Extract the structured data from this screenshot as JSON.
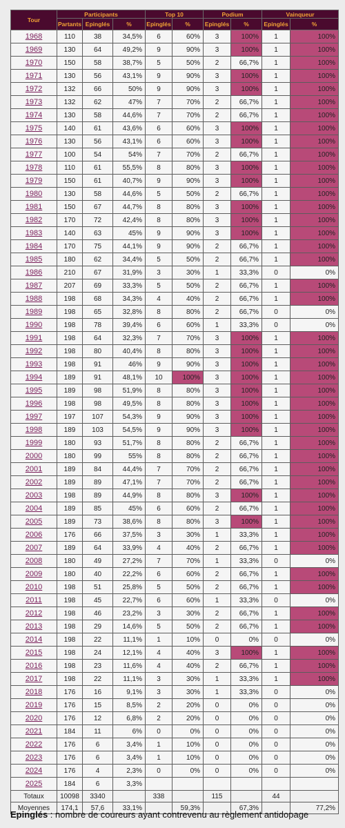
{
  "header": {
    "tour": "Tour",
    "groups": [
      "Participants",
      "Top 10",
      "Podium",
      "Vainqueur"
    ],
    "subcols": [
      "Partants",
      "Epinglés",
      "%",
      "Epinglés",
      "%",
      "Epinglés",
      "%",
      "Epinglés",
      "%"
    ]
  },
  "rows": [
    {
      "year": "1968",
      "partants": "110",
      "ep": "38",
      "pct": "34,5%",
      "t10": "6",
      "t10p": "60%",
      "pod": "3",
      "podp": "100%",
      "vq": "1",
      "vqp": "100%"
    },
    {
      "year": "1969",
      "partants": "130",
      "ep": "64",
      "pct": "49,2%",
      "t10": "9",
      "t10p": "90%",
      "pod": "3",
      "podp": "100%",
      "vq": "1",
      "vqp": "100%"
    },
    {
      "year": "1970",
      "partants": "150",
      "ep": "58",
      "pct": "38,7%",
      "t10": "5",
      "t10p": "50%",
      "pod": "2",
      "podp": "66,7%",
      "vq": "1",
      "vqp": "100%"
    },
    {
      "year": "1971",
      "partants": "130",
      "ep": "56",
      "pct": "43,1%",
      "t10": "9",
      "t10p": "90%",
      "pod": "3",
      "podp": "100%",
      "vq": "1",
      "vqp": "100%"
    },
    {
      "year": "1972",
      "partants": "132",
      "ep": "66",
      "pct": "50%",
      "t10": "9",
      "t10p": "90%",
      "pod": "3",
      "podp": "100%",
      "vq": "1",
      "vqp": "100%"
    },
    {
      "year": "1973",
      "partants": "132",
      "ep": "62",
      "pct": "47%",
      "t10": "7",
      "t10p": "70%",
      "pod": "2",
      "podp": "66,7%",
      "vq": "1",
      "vqp": "100%"
    },
    {
      "year": "1974",
      "partants": "130",
      "ep": "58",
      "pct": "44,6%",
      "t10": "7",
      "t10p": "70%",
      "pod": "2",
      "podp": "66,7%",
      "vq": "1",
      "vqp": "100%"
    },
    {
      "year": "1975",
      "partants": "140",
      "ep": "61",
      "pct": "43,6%",
      "t10": "6",
      "t10p": "60%",
      "pod": "3",
      "podp": "100%",
      "vq": "1",
      "vqp": "100%"
    },
    {
      "year": "1976",
      "partants": "130",
      "ep": "56",
      "pct": "43,1%",
      "t10": "6",
      "t10p": "60%",
      "pod": "3",
      "podp": "100%",
      "vq": "1",
      "vqp": "100%"
    },
    {
      "year": "1977",
      "partants": "100",
      "ep": "54",
      "pct": "54%",
      "t10": "7",
      "t10p": "70%",
      "pod": "2",
      "podp": "66,7%",
      "vq": "1",
      "vqp": "100%"
    },
    {
      "year": "1978",
      "partants": "110",
      "ep": "61",
      "pct": "55,5%",
      "t10": "8",
      "t10p": "80%",
      "pod": "3",
      "podp": "100%",
      "vq": "1",
      "vqp": "100%"
    },
    {
      "year": "1979",
      "partants": "150",
      "ep": "61",
      "pct": "40,7%",
      "t10": "9",
      "t10p": "90%",
      "pod": "3",
      "podp": "100%",
      "vq": "1",
      "vqp": "100%"
    },
    {
      "year": "1980",
      "partants": "130",
      "ep": "58",
      "pct": "44,6%",
      "t10": "5",
      "t10p": "50%",
      "pod": "2",
      "podp": "66,7%",
      "vq": "1",
      "vqp": "100%"
    },
    {
      "year": "1981",
      "partants": "150",
      "ep": "67",
      "pct": "44,7%",
      "t10": "8",
      "t10p": "80%",
      "pod": "3",
      "podp": "100%",
      "vq": "1",
      "vqp": "100%"
    },
    {
      "year": "1982",
      "partants": "170",
      "ep": "72",
      "pct": "42,4%",
      "t10": "8",
      "t10p": "80%",
      "pod": "3",
      "podp": "100%",
      "vq": "1",
      "vqp": "100%"
    },
    {
      "year": "1983",
      "partants": "140",
      "ep": "63",
      "pct": "45%",
      "t10": "9",
      "t10p": "90%",
      "pod": "3",
      "podp": "100%",
      "vq": "1",
      "vqp": "100%"
    },
    {
      "year": "1984",
      "partants": "170",
      "ep": "75",
      "pct": "44,1%",
      "t10": "9",
      "t10p": "90%",
      "pod": "2",
      "podp": "66,7%",
      "vq": "1",
      "vqp": "100%"
    },
    {
      "year": "1985",
      "partants": "180",
      "ep": "62",
      "pct": "34,4%",
      "t10": "5",
      "t10p": "50%",
      "pod": "2",
      "podp": "66,7%",
      "vq": "1",
      "vqp": "100%"
    },
    {
      "year": "1986",
      "partants": "210",
      "ep": "67",
      "pct": "31,9%",
      "t10": "3",
      "t10p": "30%",
      "pod": "1",
      "podp": "33,3%",
      "vq": "0",
      "vqp": "0%"
    },
    {
      "year": "1987",
      "partants": "207",
      "ep": "69",
      "pct": "33,3%",
      "t10": "5",
      "t10p": "50%",
      "pod": "2",
      "podp": "66,7%",
      "vq": "1",
      "vqp": "100%"
    },
    {
      "year": "1988",
      "partants": "198",
      "ep": "68",
      "pct": "34,3%",
      "t10": "4",
      "t10p": "40%",
      "pod": "2",
      "podp": "66,7%",
      "vq": "1",
      "vqp": "100%"
    },
    {
      "year": "1989",
      "partants": "198",
      "ep": "65",
      "pct": "32,8%",
      "t10": "8",
      "t10p": "80%",
      "pod": "2",
      "podp": "66,7%",
      "vq": "0",
      "vqp": "0%"
    },
    {
      "year": "1990",
      "partants": "198",
      "ep": "78",
      "pct": "39,4%",
      "t10": "6",
      "t10p": "60%",
      "pod": "1",
      "podp": "33,3%",
      "vq": "0",
      "vqp": "0%"
    },
    {
      "year": "1991",
      "partants": "198",
      "ep": "64",
      "pct": "32,3%",
      "t10": "7",
      "t10p": "70%",
      "pod": "3",
      "podp": "100%",
      "vq": "1",
      "vqp": "100%"
    },
    {
      "year": "1992",
      "partants": "198",
      "ep": "80",
      "pct": "40,4%",
      "t10": "8",
      "t10p": "80%",
      "pod": "3",
      "podp": "100%",
      "vq": "1",
      "vqp": "100%"
    },
    {
      "year": "1993",
      "partants": "198",
      "ep": "91",
      "pct": "46%",
      "t10": "9",
      "t10p": "90%",
      "pod": "3",
      "podp": "100%",
      "vq": "1",
      "vqp": "100%"
    },
    {
      "year": "1994",
      "partants": "189",
      "ep": "91",
      "pct": "48,1%",
      "t10": "10",
      "t10p": "100%",
      "pod": "3",
      "podp": "100%",
      "vq": "1",
      "vqp": "100%"
    },
    {
      "year": "1995",
      "partants": "189",
      "ep": "98",
      "pct": "51,9%",
      "t10": "8",
      "t10p": "80%",
      "pod": "3",
      "podp": "100%",
      "vq": "1",
      "vqp": "100%"
    },
    {
      "year": "1996",
      "partants": "198",
      "ep": "98",
      "pct": "49,5%",
      "t10": "8",
      "t10p": "80%",
      "pod": "3",
      "podp": "100%",
      "vq": "1",
      "vqp": "100%"
    },
    {
      "year": "1997",
      "partants": "197",
      "ep": "107",
      "pct": "54,3%",
      "t10": "9",
      "t10p": "90%",
      "pod": "3",
      "podp": "100%",
      "vq": "1",
      "vqp": "100%"
    },
    {
      "year": "1998",
      "partants": "189",
      "ep": "103",
      "pct": "54,5%",
      "t10": "9",
      "t10p": "90%",
      "pod": "3",
      "podp": "100%",
      "vq": "1",
      "vqp": "100%"
    },
    {
      "year": "1999",
      "partants": "180",
      "ep": "93",
      "pct": "51,7%",
      "t10": "8",
      "t10p": "80%",
      "pod": "2",
      "podp": "66,7%",
      "vq": "1",
      "vqp": "100%"
    },
    {
      "year": "2000",
      "partants": "180",
      "ep": "99",
      "pct": "55%",
      "t10": "8",
      "t10p": "80%",
      "pod": "2",
      "podp": "66,7%",
      "vq": "1",
      "vqp": "100%"
    },
    {
      "year": "2001",
      "partants": "189",
      "ep": "84",
      "pct": "44,4%",
      "t10": "7",
      "t10p": "70%",
      "pod": "2",
      "podp": "66,7%",
      "vq": "1",
      "vqp": "100%"
    },
    {
      "year": "2002",
      "partants": "189",
      "ep": "89",
      "pct": "47,1%",
      "t10": "7",
      "t10p": "70%",
      "pod": "2",
      "podp": "66,7%",
      "vq": "1",
      "vqp": "100%"
    },
    {
      "year": "2003",
      "partants": "198",
      "ep": "89",
      "pct": "44,9%",
      "t10": "8",
      "t10p": "80%",
      "pod": "3",
      "podp": "100%",
      "vq": "1",
      "vqp": "100%"
    },
    {
      "year": "2004",
      "partants": "189",
      "ep": "85",
      "pct": "45%",
      "t10": "6",
      "t10p": "60%",
      "pod": "2",
      "podp": "66,7%",
      "vq": "1",
      "vqp": "100%"
    },
    {
      "year": "2005",
      "partants": "189",
      "ep": "73",
      "pct": "38,6%",
      "t10": "8",
      "t10p": "80%",
      "pod": "3",
      "podp": "100%",
      "vq": "1",
      "vqp": "100%"
    },
    {
      "year": "2006",
      "partants": "176",
      "ep": "66",
      "pct": "37,5%",
      "t10": "3",
      "t10p": "30%",
      "pod": "1",
      "podp": "33,3%",
      "vq": "1",
      "vqp": "100%"
    },
    {
      "year": "2007",
      "partants": "189",
      "ep": "64",
      "pct": "33,9%",
      "t10": "4",
      "t10p": "40%",
      "pod": "2",
      "podp": "66,7%",
      "vq": "1",
      "vqp": "100%"
    },
    {
      "year": "2008",
      "partants": "180",
      "ep": "49",
      "pct": "27,2%",
      "t10": "7",
      "t10p": "70%",
      "pod": "1",
      "podp": "33,3%",
      "vq": "0",
      "vqp": "0%"
    },
    {
      "year": "2009",
      "partants": "180",
      "ep": "40",
      "pct": "22,2%",
      "t10": "6",
      "t10p": "60%",
      "pod": "2",
      "podp": "66,7%",
      "vq": "1",
      "vqp": "100%"
    },
    {
      "year": "2010",
      "partants": "198",
      "ep": "51",
      "pct": "25,8%",
      "t10": "5",
      "t10p": "50%",
      "pod": "2",
      "podp": "66,7%",
      "vq": "1",
      "vqp": "100%"
    },
    {
      "year": "2011",
      "partants": "198",
      "ep": "45",
      "pct": "22,7%",
      "t10": "6",
      "t10p": "60%",
      "pod": "1",
      "podp": "33,3%",
      "vq": "0",
      "vqp": "0%"
    },
    {
      "year": "2012",
      "partants": "198",
      "ep": "46",
      "pct": "23,2%",
      "t10": "3",
      "t10p": "30%",
      "pod": "2",
      "podp": "66,7%",
      "vq": "1",
      "vqp": "100%"
    },
    {
      "year": "2013",
      "partants": "198",
      "ep": "29",
      "pct": "14,6%",
      "t10": "5",
      "t10p": "50%",
      "pod": "2",
      "podp": "66,7%",
      "vq": "1",
      "vqp": "100%"
    },
    {
      "year": "2014",
      "partants": "198",
      "ep": "22",
      "pct": "11,1%",
      "t10": "1",
      "t10p": "10%",
      "pod": "0",
      "podp": "0%",
      "vq": "0",
      "vqp": "0%"
    },
    {
      "year": "2015",
      "partants": "198",
      "ep": "24",
      "pct": "12,1%",
      "t10": "4",
      "t10p": "40%",
      "pod": "3",
      "podp": "100%",
      "vq": "1",
      "vqp": "100%"
    },
    {
      "year": "2016",
      "partants": "198",
      "ep": "23",
      "pct": "11,6%",
      "t10": "4",
      "t10p": "40%",
      "pod": "2",
      "podp": "66,7%",
      "vq": "1",
      "vqp": "100%"
    },
    {
      "year": "2017",
      "partants": "198",
      "ep": "22",
      "pct": "11,1%",
      "t10": "3",
      "t10p": "30%",
      "pod": "1",
      "podp": "33,3%",
      "vq": "1",
      "vqp": "100%"
    },
    {
      "year": "2018",
      "partants": "176",
      "ep": "16",
      "pct": "9,1%",
      "t10": "3",
      "t10p": "30%",
      "pod": "1",
      "podp": "33,3%",
      "vq": "0",
      "vqp": "0%"
    },
    {
      "year": "2019",
      "partants": "176",
      "ep": "15",
      "pct": "8,5%",
      "t10": "2",
      "t10p": "20%",
      "pod": "0",
      "podp": "0%",
      "vq": "0",
      "vqp": "0%"
    },
    {
      "year": "2020",
      "partants": "176",
      "ep": "12",
      "pct": "6,8%",
      "t10": "2",
      "t10p": "20%",
      "pod": "0",
      "podp": "0%",
      "vq": "0",
      "vqp": "0%"
    },
    {
      "year": "2021",
      "partants": "184",
      "ep": "11",
      "pct": "6%",
      "t10": "0",
      "t10p": "0%",
      "pod": "0",
      "podp": "0%",
      "vq": "0",
      "vqp": "0%"
    },
    {
      "year": "2022",
      "partants": "176",
      "ep": "6",
      "pct": "3,4%",
      "t10": "1",
      "t10p": "10%",
      "pod": "0",
      "podp": "0%",
      "vq": "0",
      "vqp": "0%"
    },
    {
      "year": "2023",
      "partants": "176",
      "ep": "6",
      "pct": "3,4%",
      "t10": "1",
      "t10p": "10%",
      "pod": "0",
      "podp": "0%",
      "vq": "0",
      "vqp": "0%"
    },
    {
      "year": "2024",
      "partants": "176",
      "ep": "4",
      "pct": "2,3%",
      "t10": "0",
      "t10p": "0%",
      "pod": "0",
      "podp": "0%",
      "vq": "0",
      "vqp": "0%"
    },
    {
      "year": "2025",
      "partants": "184",
      "ep": "6",
      "pct": "3,3%",
      "t10": "",
      "t10p": "",
      "pod": "",
      "podp": "",
      "vq": "",
      "vqp": ""
    }
  ],
  "totals": {
    "label": "Totaux",
    "partants": "10098",
    "ep": "3340",
    "pct": "",
    "t10": "338",
    "t10p": "",
    "pod": "115",
    "podp": "",
    "vq": "44",
    "vqp": ""
  },
  "averages": {
    "label": "Moyennes",
    "partants": "174,1",
    "ep": "57,6",
    "pct": "33,1%",
    "t10": "",
    "t10p": "59,3%",
    "pod": "",
    "podp": "67,3%",
    "vq": "",
    "vqp": "77,2%"
  },
  "legend": {
    "term": "Epinglés",
    "text": " : nombre de coureurs ayant contrevenu au règlement antidopage"
  },
  "colors": {
    "header_bg": "#4a0a2e",
    "header_text": "#f2a335",
    "highlight": "#b84a78",
    "year_link": "#7a1e5a"
  }
}
